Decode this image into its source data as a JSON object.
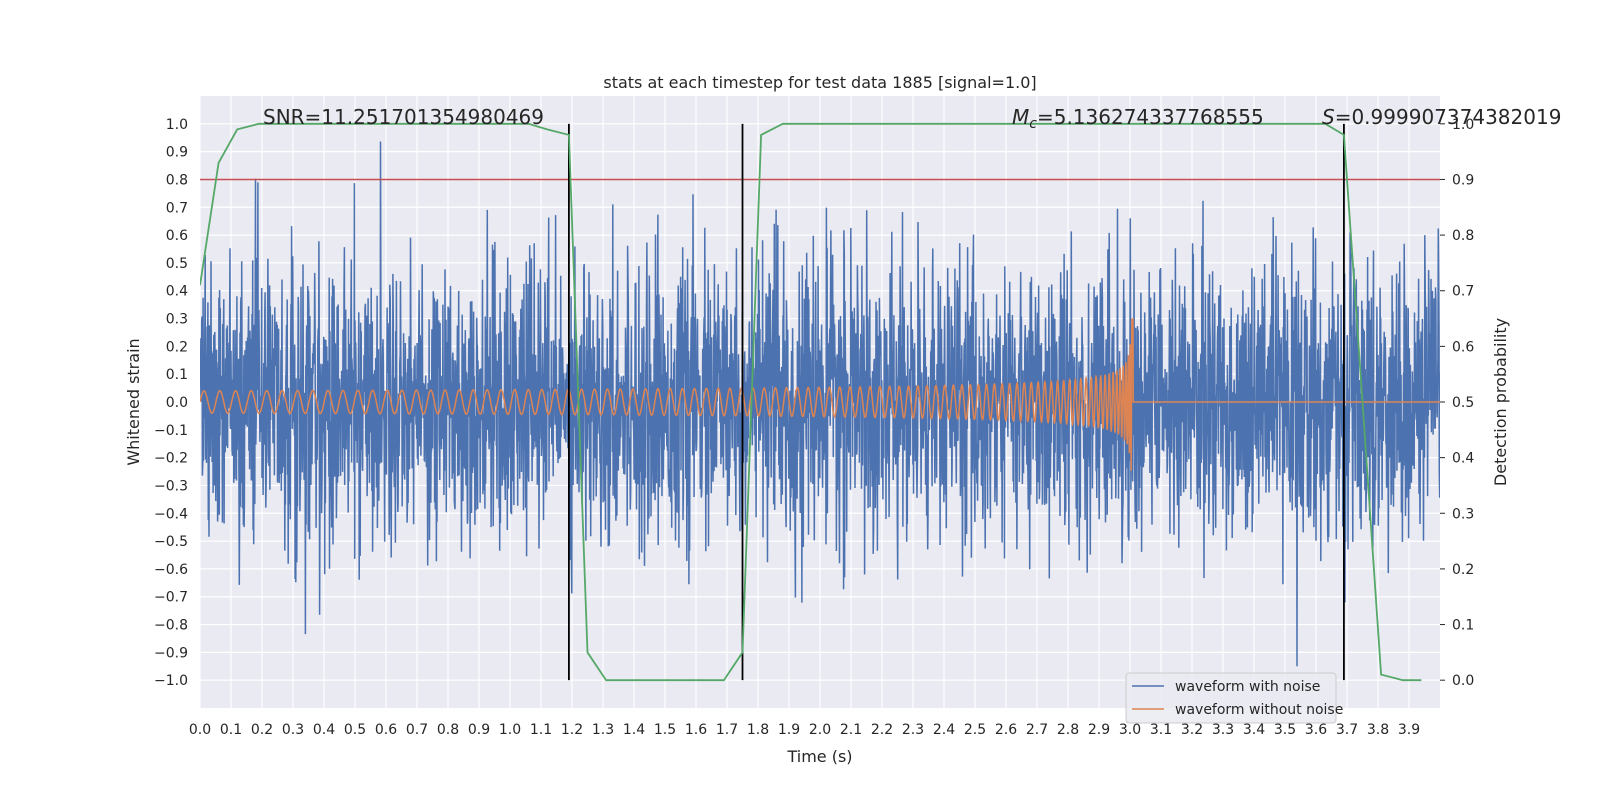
{
  "chart_data": {
    "type": "line",
    "title": "stats at each timestep for test data 1885 [signal=1.0]",
    "xlabel": "Time (s)",
    "ylabel": "Whitened strain",
    "y2label": "Detection probability",
    "xlim": [
      0.0,
      4.0
    ],
    "ylim": [
      -1.1,
      1.1
    ],
    "y2lim": [
      -0.05,
      1.05
    ],
    "x_ticks": [
      0.0,
      0.1,
      0.2,
      0.3,
      0.4,
      0.5,
      0.6,
      0.7,
      0.8,
      0.9,
      1.0,
      1.1,
      1.2,
      1.3,
      1.4,
      1.5,
      1.6,
      1.7,
      1.8,
      1.9,
      2.0,
      2.1,
      2.2,
      2.3,
      2.4,
      2.5,
      2.6,
      2.7,
      2.8,
      2.9,
      3.0,
      3.1,
      3.2,
      3.3,
      3.4,
      3.5,
      3.6,
      3.7,
      3.8,
      3.9
    ],
    "x_tick_labels": [
      "0.0",
      "0.1",
      "0.2",
      "0.3",
      "0.4",
      "0.5",
      "0.6",
      "0.7",
      "0.8",
      "0.9",
      "1.0",
      "1.1",
      "1.2",
      "1.3",
      "1.4",
      "1.5",
      "1.6",
      "1.7",
      "1.8",
      "1.9",
      "2.0",
      "2.1",
      "2.2",
      "2.3",
      "2.4",
      "2.5",
      "2.6",
      "2.7",
      "2.8",
      "2.9",
      "3.0",
      "3.1",
      "3.2",
      "3.3",
      "3.4",
      "3.5",
      "3.6",
      "3.7",
      "3.8",
      "3.9"
    ],
    "y_ticks": [
      1.0,
      0.9,
      0.8,
      0.7,
      0.6,
      0.5,
      0.4,
      0.3,
      0.2,
      0.1,
      0.0,
      -0.1,
      -0.2,
      -0.3,
      -0.4,
      -0.5,
      -0.6,
      -0.7,
      -0.8,
      -0.9,
      -1.0
    ],
    "y_tick_labels": [
      "1.0",
      "0.9",
      "0.8",
      "0.7",
      "0.6",
      "0.5",
      "0.4",
      "0.3",
      "0.2",
      "0.1",
      "0.0",
      "−0.1",
      "−0.2",
      "−0.3",
      "−0.4",
      "−0.5",
      "−0.6",
      "−0.7",
      "−0.8",
      "−0.9",
      "−1.0"
    ],
    "y2_ticks": [
      1.0,
      0.9,
      0.8,
      0.7,
      0.6,
      0.5,
      0.4,
      0.3,
      0.2,
      0.1,
      0.0
    ],
    "y2_tick_labels": [
      "1.0",
      "0.9",
      "0.8",
      "0.7",
      "0.6",
      "0.5",
      "0.4",
      "0.3",
      "0.2",
      "0.1",
      "0.0"
    ],
    "grid": true,
    "legend_position": "lower-right",
    "series": [
      {
        "name": "waveform with noise",
        "color": "#4c72b0",
        "kind": "noise",
        "amplitude_typical": 0.45,
        "amplitude_peak": 0.95
      },
      {
        "name": "waveform without noise",
        "color": "#dd8452",
        "kind": "chirp",
        "start_amplitude": 0.04,
        "peak_amplitude": 0.3,
        "merger_time": 3.01
      }
    ],
    "detection_probability": {
      "color": "#55a868",
      "x": [
        0.0,
        0.06,
        0.12,
        0.19,
        0.25,
        0.31,
        0.38,
        0.44,
        0.5,
        0.56,
        0.63,
        0.69,
        0.75,
        0.81,
        0.88,
        0.94,
        1.0,
        1.06,
        1.12,
        1.19,
        1.25,
        1.31,
        1.38,
        1.44,
        1.5,
        1.56,
        1.63,
        1.69,
        1.75,
        1.81,
        1.88,
        1.94,
        2.0,
        2.06,
        2.12,
        2.19,
        2.25,
        2.31,
        2.38,
        2.44,
        2.5,
        2.56,
        2.63,
        2.69,
        2.75,
        2.81,
        2.88,
        2.94,
        3.0,
        3.06,
        3.12,
        3.19,
        3.25,
        3.31,
        3.38,
        3.44,
        3.5,
        3.56,
        3.63,
        3.69,
        3.75,
        3.81,
        3.88,
        3.94
      ],
      "y": [
        0.71,
        0.93,
        0.99,
        1.0,
        1.0,
        1.0,
        1.0,
        1.0,
        1.0,
        1.0,
        1.0,
        1.0,
        1.0,
        1.0,
        1.0,
        1.0,
        1.0,
        1.0,
        0.99,
        0.98,
        0.05,
        0.0,
        0.0,
        0.0,
        0.0,
        0.0,
        0.0,
        0.0,
        0.05,
        0.98,
        1.0,
        1.0,
        1.0,
        1.0,
        1.0,
        1.0,
        1.0,
        1.0,
        1.0,
        1.0,
        1.0,
        1.0,
        1.0,
        1.0,
        1.0,
        1.0,
        1.0,
        1.0,
        1.0,
        1.0,
        1.0,
        1.0,
        1.0,
        1.0,
        1.0,
        1.0,
        1.0,
        1.0,
        1.0,
        0.98,
        0.5,
        0.01,
        0.0,
        0.0
      ]
    },
    "threshold_line": {
      "value": 0.9,
      "axis": "y2",
      "color": "#c44e52"
    },
    "vertical_lines": [
      1.19,
      1.75,
      3.69
    ],
    "annotations": [
      {
        "label": "SNR",
        "text": "SNR=11.251701354980469"
      },
      {
        "label": "Mc",
        "symbol": "M",
        "sub": "c",
        "text": "=5.136274337768555"
      },
      {
        "label": "S",
        "symbol": "S",
        "text": "=0.999907374382019"
      }
    ],
    "legend": [
      "waveform with noise",
      "waveform without noise"
    ]
  }
}
